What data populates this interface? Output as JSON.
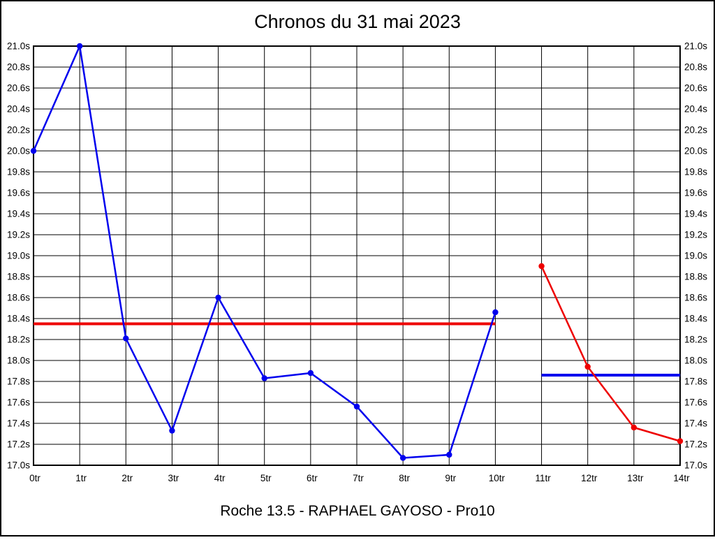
{
  "page": {
    "title": "Chronos du 31 mai 2023",
    "footer": "Roche 13.5 - RAPHAEL GAYOSO - Pro10"
  },
  "chart_data": {
    "type": "line",
    "title": "Chronos du 31 mai 2023",
    "subtitle": "Roche 13.5 - RAPHAEL GAYOSO - Pro10",
    "xlabel": "",
    "ylabel": "",
    "x_unit": "tr",
    "y_unit": "s",
    "xlim": [
      0,
      14
    ],
    "ylim": [
      17.0,
      21.0
    ],
    "y_tick_step": 0.2,
    "grid": true,
    "legend": false,
    "x_tick_labels": [
      "0tr",
      "1tr",
      "2tr",
      "3tr",
      "4tr",
      "5tr",
      "6tr",
      "7tr",
      "8tr",
      "9tr",
      "10tr",
      "11tr",
      "12tr",
      "13tr",
      "14tr"
    ],
    "y_tick_labels": [
      "21.0s",
      "20.8s",
      "20.6s",
      "20.4s",
      "20.2s",
      "20.0s",
      "19.8s",
      "19.6s",
      "19.4s",
      "19.2s",
      "19.0s",
      "18.8s",
      "18.6s",
      "18.4s",
      "18.2s",
      "18.0s",
      "17.8s",
      "17.6s",
      "17.4s",
      "17.2s",
      "17.0s"
    ],
    "y_axis_sides": [
      "left",
      "right"
    ],
    "series": [
      {
        "name": "run-1-lap-times",
        "color": "#0000ee",
        "x": [
          0,
          1,
          2,
          3,
          4,
          5,
          6,
          7,
          8,
          9,
          10
        ],
        "values": [
          20.0,
          21.0,
          18.21,
          17.33,
          18.6,
          17.83,
          17.88,
          17.56,
          17.07,
          17.1,
          18.46
        ]
      },
      {
        "name": "run-2-lap-times",
        "color": "#ee0000",
        "x": [
          11,
          12,
          13,
          14
        ],
        "values": [
          18.9,
          17.94,
          17.36,
          17.23
        ]
      }
    ],
    "reference_lines": [
      {
        "name": "run-1-average-line",
        "color": "#ee0000",
        "value": 18.35,
        "x_start": 0,
        "x_end": 10
      },
      {
        "name": "run-2-average-line",
        "color": "#0000ee",
        "value": 17.86,
        "x_start": 11,
        "x_end": 14
      }
    ]
  }
}
